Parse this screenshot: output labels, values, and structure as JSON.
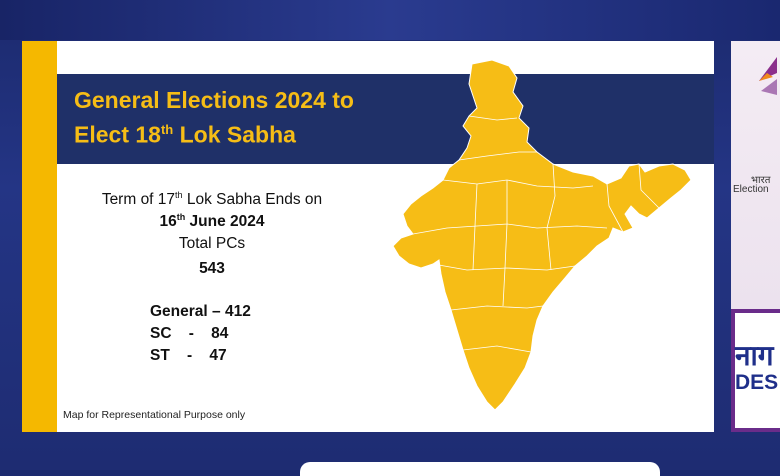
{
  "slide": {
    "title_line1": "General Elections 2024 to",
    "title_line2_pre": "Elect 18",
    "title_line2_sup": "th",
    "title_line2_post": " Lok Sabha",
    "term_pre": "Term of 17",
    "term_sup": "th",
    "term_post": " Lok Sabha Ends on",
    "end_date_pre": "16",
    "end_date_sup": "th",
    "end_date_post": " June 2024",
    "total_pcs_label": "Total PCs",
    "total_pcs_value": "543",
    "general_row": "General – 412",
    "sc_row": "SC    -    84",
    "st_row": "ST    -    47",
    "disclaimer": "Map for Representational Purpose only"
  },
  "side_panel": {
    "hindi_top": "भारत",
    "election_text": "Election",
    "hindi_big": "नाग",
    "des_text": "DES"
  },
  "colors": {
    "accent_yellow": "#f5b800",
    "banner_navy": "#1f3068",
    "background_blue": "#243585",
    "map_fill": "#f6bd16"
  }
}
